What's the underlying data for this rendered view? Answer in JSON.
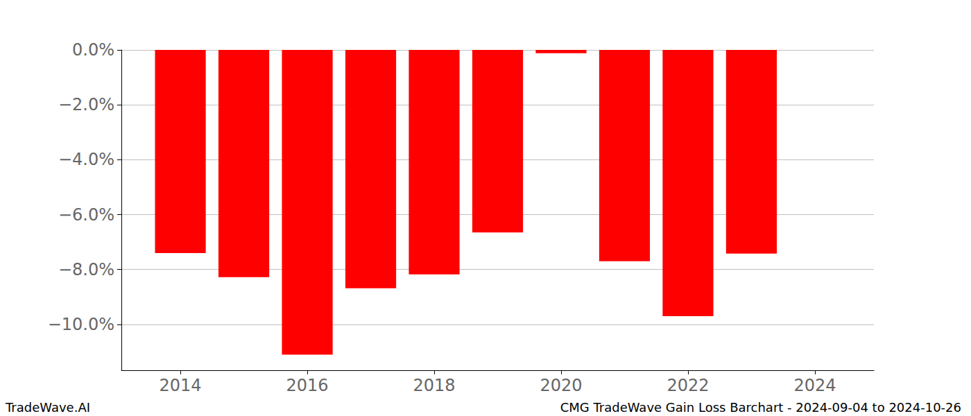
{
  "chart_data": {
    "type": "bar",
    "x": [
      2014,
      2015,
      2016,
      2017,
      2018,
      2019,
      2020,
      2021,
      2022,
      2023
    ],
    "values": [
      -7.4,
      -8.28,
      -11.1,
      -8.68,
      -8.18,
      -6.65,
      -0.12,
      -7.7,
      -9.7,
      -7.42
    ],
    "color": "#ff0000",
    "xlim": [
      2013.07,
      2024.93
    ],
    "xticks": [
      2014,
      2016,
      2018,
      2020,
      2022,
      2024
    ],
    "ylim": [
      -11.67,
      0
    ],
    "yticks": [
      {
        "value": 0,
        "label": "0.0%"
      },
      {
        "value": -2,
        "label": "−2.0%"
      },
      {
        "value": -4,
        "label": "−4.0%"
      },
      {
        "value": -6,
        "label": "−6.0%"
      },
      {
        "value": -8,
        "label": "−8.0%"
      },
      {
        "value": -10,
        "label": "−10.0%"
      }
    ],
    "grid": true,
    "annotations": [
      "TradeWave.AI",
      "CMG TradeWave Gain Loss Barchart - 2024-09-04 to 2024-10-26"
    ]
  }
}
